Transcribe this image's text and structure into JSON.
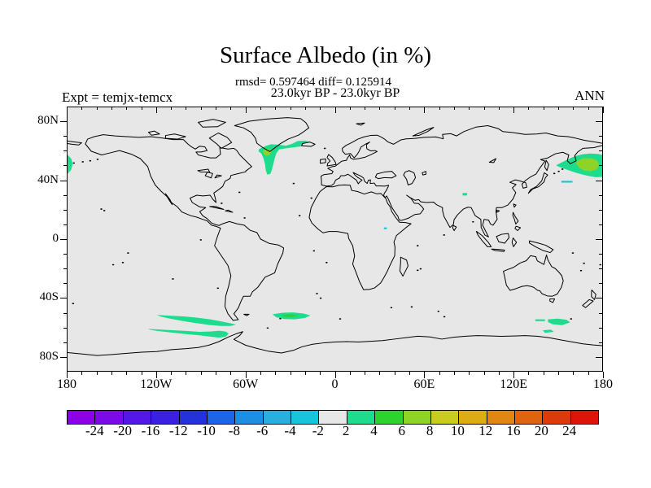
{
  "header": {
    "title": "Surface Albedo (in %)",
    "stats_line": "rmsd= 0.597464 diff= 0.125914",
    "period_line": "23.0kyr BP - 23.0kyr BP",
    "experiment": "Expt = temjx-temcx",
    "season": "ANN"
  },
  "axes": {
    "lat_labels": [
      {
        "text": "80N",
        "lat": 80
      },
      {
        "text": "40N",
        "lat": 40
      },
      {
        "text": "0",
        "lat": 0
      },
      {
        "text": "40S",
        "lat": -40
      },
      {
        "text": "80S",
        "lat": -80
      }
    ],
    "lon_labels": [
      {
        "text": "180",
        "lon": -180
      },
      {
        "text": "120W",
        "lon": -120
      },
      {
        "text": "60W",
        "lon": -60
      },
      {
        "text": "0",
        "lon": 0
      },
      {
        "text": "60E",
        "lon": 60
      },
      {
        "text": "120E",
        "lon": 120
      },
      {
        "text": "180",
        "lon": 180
      }
    ],
    "lat_minor_step_deg": 10,
    "lon_minor_step_deg": 10
  },
  "colorbar": {
    "boundary_labels": [
      "-24",
      "-20",
      "-16",
      "-12",
      "-10",
      "-8",
      "-6",
      "-4",
      "-2",
      "2",
      "4",
      "6",
      "8",
      "10",
      "12",
      "16",
      "20",
      "24"
    ],
    "colors": [
      "#8b00e6",
      "#7a0ae8",
      "#5517e8",
      "#3a20e2",
      "#2432dc",
      "#1e64e6",
      "#1e8ee2",
      "#2aaede",
      "#16c4dc",
      "#e7e7e7",
      "#1edc8e",
      "#2ed22e",
      "#8ed428",
      "#c9cc1e",
      "#dcac12",
      "#e08614",
      "#de6410",
      "#dc3a0c",
      "#de1408"
    ]
  },
  "map": {
    "background": "#e7e7e7",
    "coastline": "#000000"
  },
  "patch_colors": {
    "green_2_4": "#1edc8e",
    "green_4_6": "#2ed22e",
    "yellowgreen_6_8": "#8ed428",
    "cyan_neg4_neg2": "#16c4dc"
  },
  "chart_data": {
    "type": "heatmap",
    "subtype": "filled-contour difference map on equirectangular world projection",
    "title": "Surface Albedo (in %)",
    "stats": {
      "rmsd": 0.597464,
      "diff": 0.125914
    },
    "comparison": "23.0kyr BP - 23.0kyr BP",
    "experiment": "temjx-temcx",
    "season": "ANN",
    "lon_range": [
      -180,
      180
    ],
    "lat_range": [
      -90,
      90
    ],
    "contour_levels": [
      -24,
      -20,
      -16,
      -12,
      -10,
      -8,
      -6,
      -4,
      -2,
      2,
      4,
      6,
      8,
      10,
      12,
      16,
      20,
      24
    ],
    "background_value_band": "-2 to 2 (neutral gray over most of the globe)",
    "anomaly_regions": [
      {
        "region": "South of Greenland / Labrador Sea with arm around Iceland",
        "lon": "-52 to -13",
        "lat": "44N to 68N",
        "value": "+2 to +4, core +6 to +8 near 47W 59N"
      },
      {
        "region": "Northwest Pacific near Kamchatka (wraps across dateline to map left edge)",
        "lon": "149E to 180 and -180 to -176",
        "lat": "41N to 58N",
        "value": "+2 to +4, core +6 to +8 near 170E 51N"
      },
      {
        "region": "Small negative streak south of Kamchatka patch",
        "lon": "153E to 160E",
        "lat": "about 39N",
        "value": "-4 to -2"
      },
      {
        "region": "South Pacific zonal band",
        "lon": "-120 to -66",
        "lat": "52S to 59S",
        "value": "+2 to +4"
      },
      {
        "region": "Band near Antarctic Peninsula / Bellingshausen Sea",
        "lon": "-126 to -71",
        "lat": "61S to 67S",
        "value": "+2 to +4"
      },
      {
        "region": "South Atlantic oval east of Argentina",
        "lon": "-42 to -16",
        "lat": "50S to 55S",
        "value": "+2 to +4, core +4 to +6"
      },
      {
        "region": "South of Australia, three small patches",
        "lon": "135E to 159E",
        "lat": "54S to 64S",
        "value": "+2 to +4"
      },
      {
        "region": "Tibetan Plateau spot",
        "lon": "about 88E",
        "lat": "about 31N",
        "value": "+2 to +4"
      },
      {
        "region": "East Africa tiny spot",
        "lon": "about 34E",
        "lat": "about 7N",
        "value": "-4 to -2"
      }
    ],
    "legend_position": "horizontal colorbar below map",
    "grid": false
  }
}
